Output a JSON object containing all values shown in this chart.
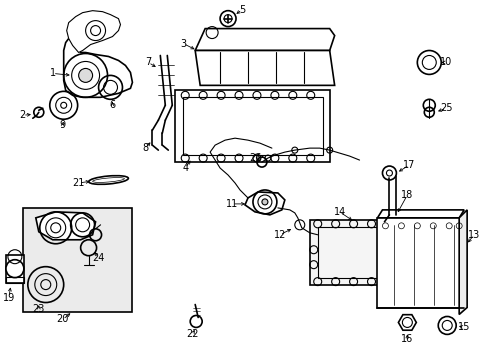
{
  "background_color": "#ffffff",
  "figsize": [
    4.89,
    3.6
  ],
  "dpi": 100,
  "label_fontsize": 7.0,
  "line_color": "#000000"
}
